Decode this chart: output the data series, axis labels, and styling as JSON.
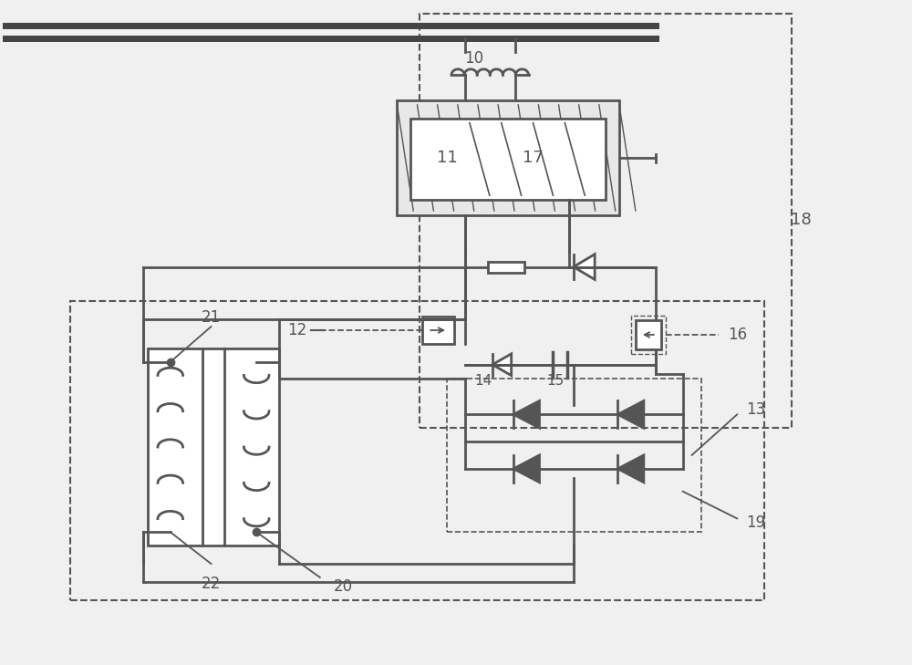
{
  "bg_color": "#f0f0f0",
  "line_color": "#aaaaaa",
  "dark_color": "#555555",
  "fig_width": 10.0,
  "fig_height": 7.29,
  "lw_main": 2.0,
  "lw_thin": 1.3,
  "lw_bus": 4.0
}
